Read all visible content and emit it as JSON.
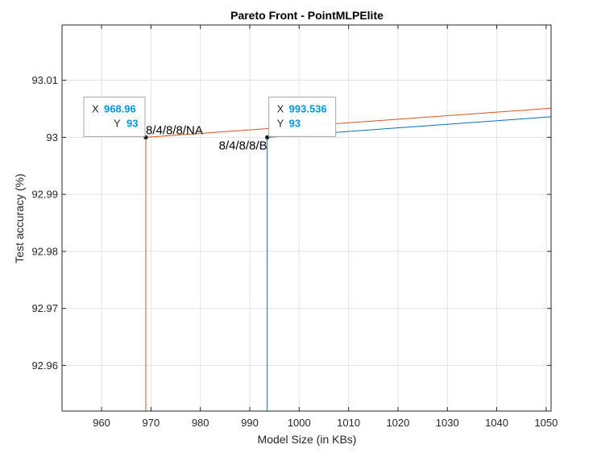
{
  "chart_data": {
    "type": "line",
    "title": "Pareto Front - PointMLPElite",
    "xlabel": "Model Size (in KBs)",
    "ylabel": "Test accuracy (%)",
    "xlim": [
      952,
      1051
    ],
    "ylim": [
      92.952,
      93.0197
    ],
    "xticks": [
      960,
      970,
      980,
      990,
      1000,
      1010,
      1020,
      1030,
      1040,
      1050
    ],
    "yticks": [
      92.96,
      92.97,
      92.98,
      92.99,
      93,
      93.01
    ],
    "ytick_labels": [
      "92.96",
      "92.97",
      "92.98",
      "92.99",
      "93",
      "93.01"
    ],
    "grid": true,
    "series": [
      {
        "color": "#0072bd",
        "x": [
          993.536,
          993.536,
          1051
        ],
        "y": [
          92.952,
          93,
          93.0036
        ]
      },
      {
        "color": "#d95319",
        "x": [
          968.96,
          968.96,
          1051
        ],
        "y": [
          92.952,
          93,
          93.0051
        ]
      }
    ],
    "points": [
      {
        "x": 968.96,
        "y": 93,
        "label": "8/4/8/8/NA",
        "label_side": "right"
      },
      {
        "x": 993.536,
        "y": 93,
        "label": "8/4/8/8/B",
        "label_side": "left"
      }
    ],
    "datatips": [
      {
        "x_key": "X",
        "y_key": "Y",
        "x_text": "968.96",
        "y_text": "93",
        "anchor_x": 968.96,
        "anchor_y": 93
      },
      {
        "x_key": "X",
        "y_key": "Y",
        "x_text": "993.536",
        "y_text": "93",
        "anchor_x": 993.536,
        "anchor_y": 93
      }
    ],
    "colors": {
      "tip_value": "#0096e0",
      "grid": "#e3e3e3",
      "axis": "#262626"
    }
  }
}
